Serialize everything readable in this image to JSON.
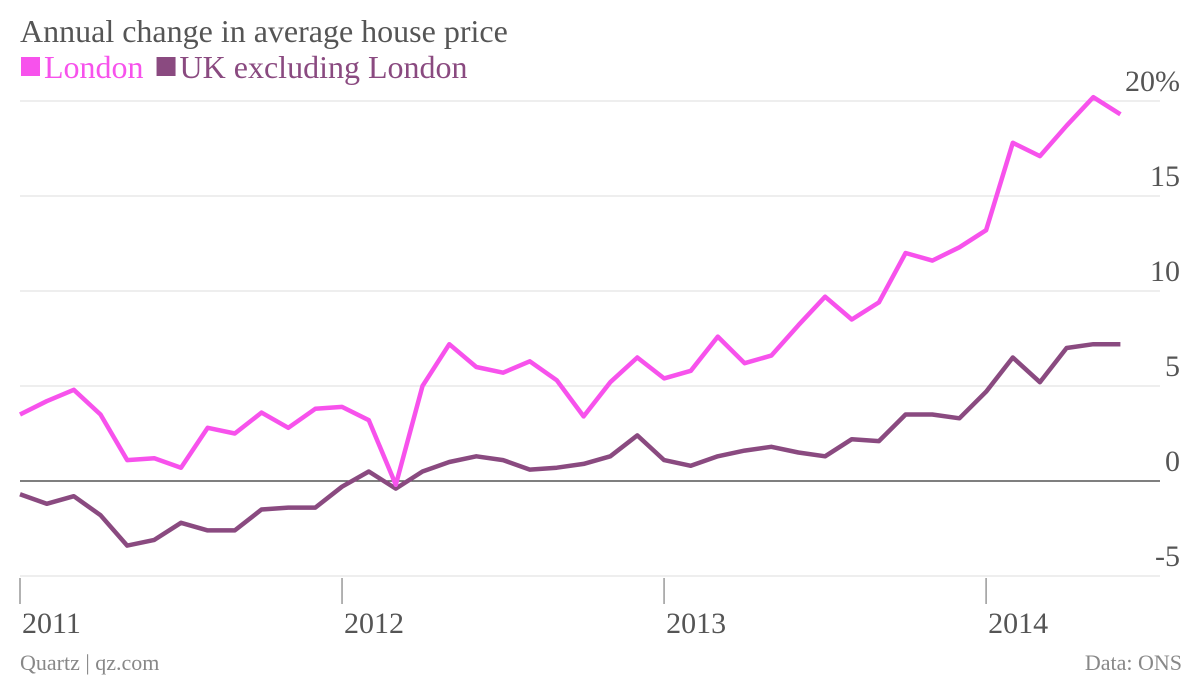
{
  "chart_data": {
    "type": "line",
    "title": "Annual change in average house price",
    "source": "Data: ONS",
    "credit": "Quartz | qz.com",
    "x": [
      2011.0,
      2011.083,
      2011.167,
      2011.25,
      2011.333,
      2011.417,
      2011.5,
      2011.583,
      2011.667,
      2011.75,
      2011.833,
      2011.917,
      2012.0,
      2012.083,
      2012.167,
      2012.25,
      2012.333,
      2012.417,
      2012.5,
      2012.583,
      2012.667,
      2012.75,
      2012.833,
      2012.917,
      2013.0,
      2013.083,
      2013.167,
      2013.25,
      2013.333,
      2013.417,
      2013.5,
      2013.583,
      2013.667,
      2013.75,
      2013.833,
      2013.917,
      2014.0,
      2014.083,
      2014.167,
      2014.25,
      2014.333,
      2014.417
    ],
    "series": [
      {
        "name": "London",
        "color": "#f752ec",
        "values": [
          3.5,
          4.2,
          4.8,
          3.5,
          1.1,
          1.2,
          0.7,
          2.8,
          2.5,
          3.6,
          2.8,
          3.8,
          3.9,
          3.2,
          -0.2,
          5.0,
          7.2,
          6.0,
          5.7,
          6.3,
          5.3,
          3.4,
          5.2,
          6.5,
          5.4,
          5.8,
          7.6,
          6.2,
          6.6,
          8.2,
          9.7,
          8.5,
          9.4,
          12.0,
          11.6,
          12.3,
          13.2,
          17.8,
          17.1,
          18.7,
          20.2,
          19.3
        ]
      },
      {
        "name": "UK excluding London",
        "color": "#8a4a80",
        "values": [
          -0.7,
          -1.2,
          -0.8,
          -1.8,
          -3.4,
          -3.1,
          -2.2,
          -2.6,
          -2.6,
          -1.5,
          -1.4,
          -1.4,
          -0.3,
          0.5,
          -0.4,
          0.5,
          1.0,
          1.3,
          1.1,
          0.6,
          0.7,
          0.9,
          1.3,
          2.4,
          1.1,
          0.8,
          1.3,
          1.6,
          1.8,
          1.5,
          1.3,
          2.2,
          2.1,
          3.5,
          3.5,
          3.3,
          4.7,
          6.5,
          5.2,
          7.0,
          7.2,
          7.2
        ]
      }
    ],
    "xlim": [
      2011,
      2014.54
    ],
    "xticks": [
      2011,
      2012,
      2013,
      2014
    ],
    "ylim": [
      -6.5,
      21
    ],
    "yticks": [
      -5,
      0,
      5,
      10,
      {
        "value": 15,
        "label": "15"
      },
      {
        "value": 20,
        "label": "20%"
      }
    ],
    "grid": true,
    "legend": "top-left"
  }
}
